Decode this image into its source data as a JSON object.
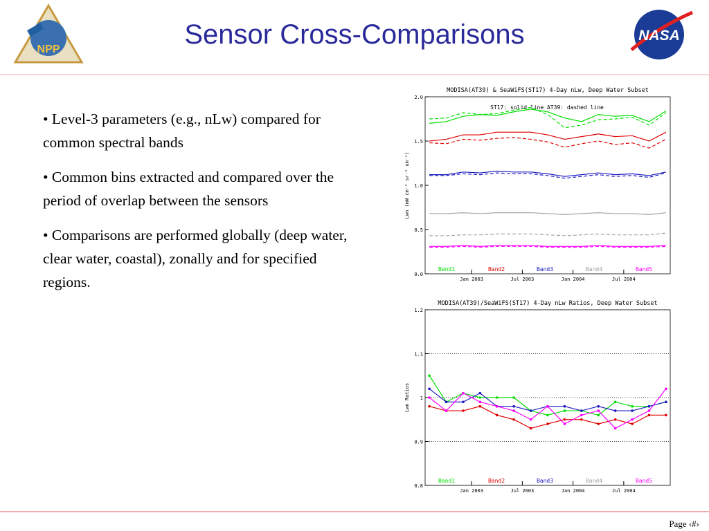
{
  "header": {
    "title": "Sensor Cross-Comparisons",
    "left_logo": "NPP",
    "right_logo": "NASA"
  },
  "bullets": [
    "Level-3 parameters (e.g., nLw) compared for common spectral bands",
    "Common bins extracted and compared over the period of overlap between the sensors",
    "Comparisons are performed globally (deep water, clear water, coastal), zonally and for specified regions."
  ],
  "footer": {
    "page": "Page ‹#›"
  },
  "chart_data": [
    {
      "type": "line",
      "title": "MODISA(AT39) & SeaWiFS(ST17) 4-Day nLw, Deep Water Subset",
      "annotation": "ST17: solid line    AT39: dashed line",
      "y_label": "Lwn (mW cm⁻² sr⁻¹ um⁻¹)",
      "x": [
        -5,
        -3,
        -1,
        1,
        3,
        5,
        7,
        9,
        11,
        13,
        15,
        17,
        19,
        21,
        23
      ],
      "xlim": [
        -5.5,
        23.5
      ],
      "xticks": [
        {
          "value": 0,
          "label": "Jan 2003"
        },
        {
          "value": 6,
          "label": "Jul 2003"
        },
        {
          "value": 12,
          "label": "Jan 2004"
        },
        {
          "value": 18,
          "label": "Jul 2004"
        }
      ],
      "ylim": [
        0,
        2
      ],
      "yticks": [
        {
          "value": 0,
          "label": "0.0"
        },
        {
          "value": 0.5,
          "label": "0.5"
        },
        {
          "value": 1,
          "label": "1.0"
        },
        {
          "value": 1.5,
          "label": "1.5"
        },
        {
          "value": 2,
          "label": "2.0"
        }
      ],
      "grid": false,
      "markers": false,
      "series": [
        {
          "name": "Band1",
          "color": "#00dd00",
          "dashed": false,
          "values": [
            1.7,
            1.72,
            1.78,
            1.8,
            1.79,
            1.83,
            1.86,
            1.83,
            1.76,
            1.72,
            1.8,
            1.78,
            1.79,
            1.72,
            1.84
          ]
        },
        {
          "name": "Band2",
          "color": "#e00000",
          "dashed": false,
          "values": [
            1.5,
            1.52,
            1.57,
            1.57,
            1.6,
            1.6,
            1.6,
            1.57,
            1.52,
            1.55,
            1.58,
            1.55,
            1.56,
            1.5,
            1.6
          ]
        },
        {
          "name": "Band3",
          "color": "#1a1ac0",
          "dashed": false,
          "values": [
            1.12,
            1.12,
            1.15,
            1.14,
            1.16,
            1.15,
            1.15,
            1.13,
            1.1,
            1.12,
            1.14,
            1.12,
            1.13,
            1.11,
            1.15
          ]
        },
        {
          "name": "Band4",
          "color": "#a0a0a0",
          "dashed": false,
          "values": [
            0.68,
            0.68,
            0.69,
            0.68,
            0.69,
            0.69,
            0.69,
            0.68,
            0.67,
            0.68,
            0.69,
            0.68,
            0.68,
            0.67,
            0.69
          ]
        },
        {
          "name": "Band5",
          "color": "#ff00ff",
          "dashed": false,
          "values": [
            0.31,
            0.31,
            0.32,
            0.31,
            0.32,
            0.32,
            0.32,
            0.31,
            0.31,
            0.31,
            0.32,
            0.31,
            0.31,
            0.31,
            0.32
          ]
        },
        {
          "color": "#00dd00",
          "dashed": true,
          "values": [
            1.75,
            1.76,
            1.82,
            1.8,
            1.81,
            1.85,
            1.88,
            1.8,
            1.65,
            1.68,
            1.74,
            1.75,
            1.77,
            1.68,
            1.82
          ]
        },
        {
          "color": "#e00000",
          "dashed": true,
          "values": [
            1.48,
            1.47,
            1.52,
            1.51,
            1.53,
            1.54,
            1.52,
            1.49,
            1.43,
            1.47,
            1.5,
            1.46,
            1.48,
            1.42,
            1.52
          ]
        },
        {
          "color": "#1a1ac0",
          "dashed": true,
          "values": [
            1.11,
            1.11,
            1.13,
            1.12,
            1.14,
            1.13,
            1.13,
            1.11,
            1.08,
            1.1,
            1.12,
            1.1,
            1.11,
            1.09,
            1.14
          ]
        },
        {
          "color": "#a0a0a0",
          "dashed": true,
          "values": [
            0.43,
            0.43,
            0.44,
            0.44,
            0.45,
            0.45,
            0.45,
            0.44,
            0.43,
            0.44,
            0.45,
            0.44,
            0.44,
            0.44,
            0.46
          ]
        },
        {
          "color": "#ff00ff",
          "dashed": true,
          "values": [
            0.3,
            0.3,
            0.31,
            0.3,
            0.31,
            0.31,
            0.31,
            0.3,
            0.3,
            0.3,
            0.31,
            0.3,
            0.3,
            0.3,
            0.31
          ]
        }
      ]
    },
    {
      "type": "line",
      "title": "MODISA(AT39)/SeaWiFS(ST17) 4-Day nLw Ratios, Deep Water Subset",
      "y_label": "Lwn Ratios",
      "x": [
        -5,
        -3,
        -1,
        1,
        3,
        5,
        7,
        9,
        11,
        13,
        15,
        17,
        19,
        21,
        23
      ],
      "xlim": [
        -5.5,
        23.5
      ],
      "xticks": [
        {
          "value": 0,
          "label": "Jan 2003"
        },
        {
          "value": 6,
          "label": "Jul 2003"
        },
        {
          "value": 12,
          "label": "Jan 2004"
        },
        {
          "value": 18,
          "label": "Jul 2004"
        }
      ],
      "ylim": [
        0.8,
        1.2
      ],
      "yticks": [
        0.8,
        0.9,
        1.0,
        1.1,
        1.2
      ],
      "grid": true,
      "markers": true,
      "series": [
        {
          "name": "Band1",
          "color": "#00dd00",
          "values": [
            1.05,
            0.99,
            1.01,
            1.0,
            1.0,
            1.0,
            0.97,
            0.96,
            0.97,
            0.97,
            0.96,
            0.99,
            0.98,
            0.98,
            0.99
          ]
        },
        {
          "name": "Band2",
          "color": "#e00000",
          "values": [
            0.98,
            0.97,
            0.97,
            0.98,
            0.96,
            0.95,
            0.93,
            0.94,
            0.95,
            0.95,
            0.94,
            0.95,
            0.94,
            0.96,
            0.96
          ]
        },
        {
          "name": "Band3",
          "color": "#1a1ac0",
          "values": [
            1.02,
            0.99,
            0.99,
            1.01,
            0.98,
            0.98,
            0.97,
            0.98,
            0.98,
            0.97,
            0.98,
            0.97,
            0.97,
            0.98,
            0.99
          ]
        },
        {
          "name": "Band4",
          "color": "#a0a0a0",
          "values": [
            null,
            null,
            null,
            null,
            null,
            null,
            null,
            null,
            null,
            null,
            null,
            null,
            null,
            null,
            null
          ]
        },
        {
          "name": "Band5",
          "color": "#ff00ff",
          "values": [
            1.0,
            0.97,
            1.01,
            0.99,
            0.98,
            0.97,
            0.95,
            0.98,
            0.94,
            0.96,
            0.97,
            0.93,
            0.95,
            0.97,
            1.02
          ]
        }
      ]
    }
  ]
}
